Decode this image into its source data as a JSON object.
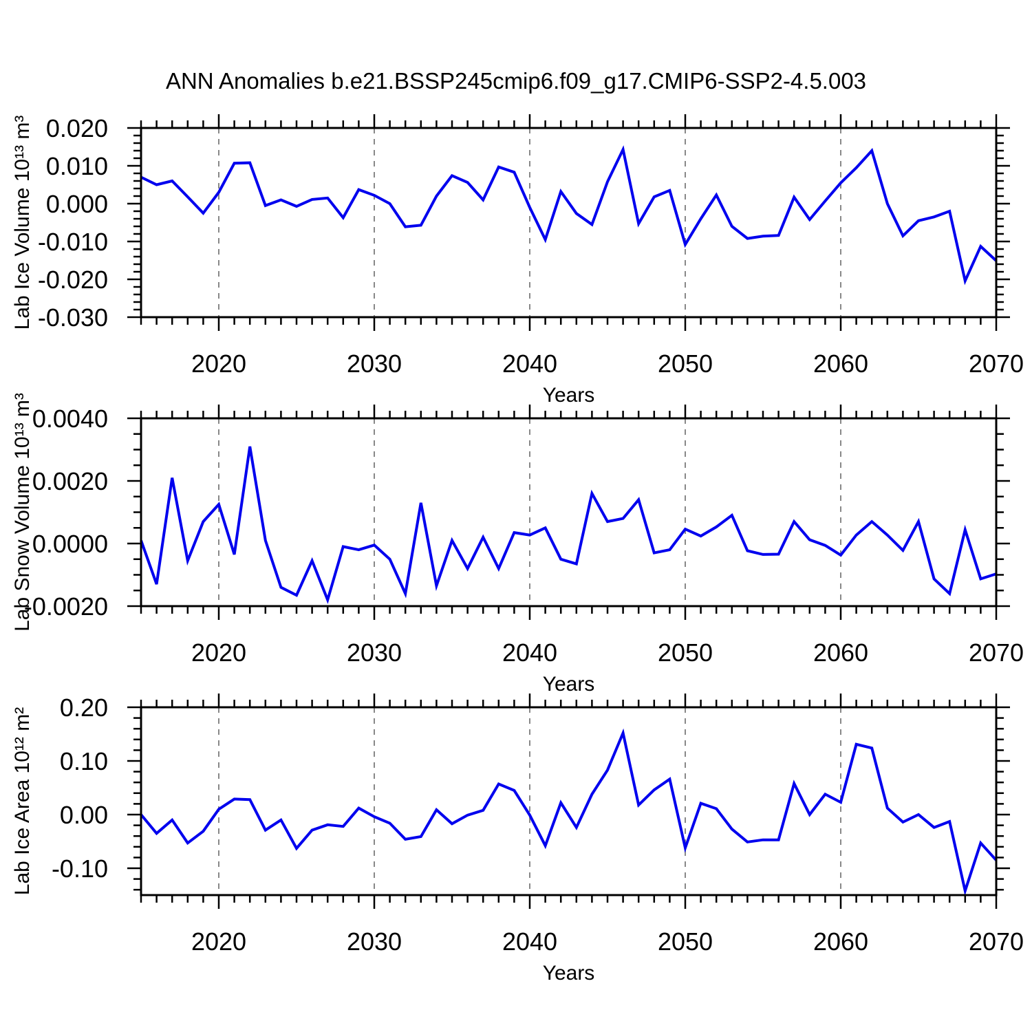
{
  "title": "ANN Anomalies b.e21.BSSP245cmip6.f09_g17.CMIP6-SSP2-4.5.003",
  "colors": {
    "series": "#0000EE",
    "grid": "#888888",
    "axis": "#000000",
    "background": "#FFFFFF"
  },
  "chart_data": [
    {
      "type": "line",
      "name": "lab-ice-volume",
      "ylabel": "Lab Ice Volume 10¹³ m³",
      "xlabel": "Years",
      "legend": "none",
      "grid": "vertical dashed gridlines at decade ticks",
      "xlim": [
        2015,
        2070
      ],
      "ylim": [
        -0.03,
        0.02
      ],
      "xticks": [
        2020,
        2030,
        2040,
        2050,
        2060,
        2070
      ],
      "yticks": [
        0.02,
        0.01,
        0.0,
        -0.01,
        -0.02,
        -0.03
      ],
      "ytick_labels": [
        "0.020",
        "0.010",
        "0.000",
        "-0.010",
        "-0.020",
        "-0.030"
      ],
      "y_minor_step": 0.002,
      "x_minor_step": 1,
      "x": [
        2015,
        2016,
        2017,
        2018,
        2019,
        2020,
        2021,
        2022,
        2023,
        2024,
        2025,
        2026,
        2027,
        2028,
        2029,
        2030,
        2031,
        2032,
        2033,
        2034,
        2035,
        2036,
        2037,
        2038,
        2039,
        2040,
        2041,
        2042,
        2043,
        2044,
        2045,
        2046,
        2047,
        2048,
        2049,
        2050,
        2051,
        2052,
        2053,
        2054,
        2055,
        2056,
        2057,
        2058,
        2059,
        2060,
        2061,
        2062,
        2063,
        2064,
        2065,
        2066,
        2067,
        2068,
        2069,
        2070
      ],
      "values": [
        0.007,
        0.005,
        0.006,
        0.0018,
        -0.0025,
        0.003,
        0.0107,
        0.0108,
        -0.0005,
        0.001,
        -0.0007,
        0.0011,
        0.0015,
        -0.0037,
        0.0037,
        0.0022,
        0.0,
        -0.0061,
        -0.0057,
        0.002,
        0.0074,
        0.0056,
        0.001,
        0.0097,
        0.0083,
        -0.001,
        -0.0095,
        0.0032,
        -0.0026,
        -0.0055,
        0.0058,
        0.0143,
        -0.0053,
        0.0018,
        0.0035,
        -0.0108,
        -0.004,
        0.0023,
        -0.006,
        -0.0092,
        -0.0086,
        -0.0084,
        0.0017,
        -0.0042,
        0.0007,
        0.0055,
        0.0095,
        0.014,
        0.0,
        -0.0085,
        -0.0045,
        -0.0035,
        -0.002,
        -0.0204,
        -0.0113,
        -0.0151
      ]
    },
    {
      "type": "line",
      "name": "lab-snow-volume",
      "ylabel": "Lab Snow Volume 10¹³ m³",
      "xlabel": "Years",
      "legend": "none",
      "grid": "vertical dashed gridlines at decade ticks",
      "xlim": [
        2015,
        2070
      ],
      "ylim": [
        -0.002,
        0.004
      ],
      "xticks": [
        2020,
        2030,
        2040,
        2050,
        2060,
        2070
      ],
      "yticks": [
        0.004,
        0.002,
        0.0,
        -0.002
      ],
      "ytick_labels": [
        "0.0040",
        "0.0020",
        "0.0000",
        "-0.0020"
      ],
      "y_minor_step": 0.0005,
      "x_minor_step": 1,
      "x": [
        2015,
        2016,
        2017,
        2018,
        2019,
        2020,
        2021,
        2022,
        2023,
        2024,
        2025,
        2026,
        2027,
        2028,
        2029,
        2030,
        2031,
        2032,
        2033,
        2034,
        2035,
        2036,
        2037,
        2038,
        2039,
        2040,
        2041,
        2042,
        2043,
        2044,
        2045,
        2046,
        2047,
        2048,
        2049,
        2050,
        2051,
        2052,
        2053,
        2054,
        2055,
        2056,
        2057,
        2058,
        2059,
        2060,
        2061,
        2062,
        2063,
        2064,
        2065,
        2066,
        2067,
        2068,
        2069,
        2070
      ],
      "values": [
        0.0001,
        -0.0013,
        0.0021,
        -0.00055,
        0.0007,
        0.00125,
        -0.00035,
        0.0031,
        0.0001,
        -0.0014,
        -0.00165,
        -0.00055,
        -0.0018,
        -0.0001,
        -0.0002,
        -5e-05,
        -0.0005,
        -0.0016,
        0.0013,
        -0.00135,
        0.0001,
        -0.0008,
        0.0002,
        -0.0008,
        0.00035,
        0.00027,
        0.0005,
        -0.0005,
        -0.00065,
        0.0016,
        0.0007,
        0.0008,
        0.0014,
        -0.0003,
        -0.0002,
        0.00046,
        0.00024,
        0.00053,
        0.0009,
        -0.00023,
        -0.00035,
        -0.00034,
        0.0007,
        0.00012,
        -6e-05,
        -0.00037,
        0.00027,
        0.0007,
        0.00027,
        -0.00022,
        0.0007,
        -0.00113,
        -0.0016,
        0.00044,
        -0.00113,
        -0.00097
      ]
    },
    {
      "type": "line",
      "name": "lab-ice-area",
      "ylabel": "Lab Ice Area 10¹² m²",
      "xlabel": "Years",
      "legend": "none",
      "grid": "vertical dashed gridlines at decade ticks",
      "xlim": [
        2015,
        2070
      ],
      "ylim": [
        -0.15,
        0.2
      ],
      "xticks": [
        2020,
        2030,
        2040,
        2050,
        2060,
        2070
      ],
      "yticks": [
        0.2,
        0.1,
        0.0,
        -0.1
      ],
      "ytick_labels": [
        "0.20",
        "0.10",
        "0.00",
        "-0.10"
      ],
      "y_minor_step": 0.02,
      "x_minor_step": 1,
      "x": [
        2015,
        2016,
        2017,
        2018,
        2019,
        2020,
        2021,
        2022,
        2023,
        2024,
        2025,
        2026,
        2027,
        2028,
        2029,
        2030,
        2031,
        2032,
        2033,
        2034,
        2035,
        2036,
        2037,
        2038,
        2039,
        2040,
        2041,
        2042,
        2043,
        2044,
        2045,
        2046,
        2047,
        2048,
        2049,
        2050,
        2051,
        2052,
        2053,
        2054,
        2055,
        2056,
        2057,
        2058,
        2059,
        2060,
        2061,
        2062,
        2063,
        2064,
        2065,
        2066,
        2067,
        2068,
        2069,
        2070
      ],
      "values": [
        0.0,
        -0.035,
        -0.01,
        -0.053,
        -0.031,
        0.01,
        0.029,
        0.028,
        -0.029,
        -0.01,
        -0.063,
        -0.029,
        -0.019,
        -0.022,
        0.012,
        -0.004,
        -0.016,
        -0.046,
        -0.041,
        0.009,
        -0.017,
        -0.001,
        0.008,
        0.057,
        0.045,
        -0.001,
        -0.058,
        0.022,
        -0.024,
        0.038,
        0.083,
        0.152,
        0.018,
        0.046,
        0.066,
        -0.062,
        0.021,
        0.011,
        -0.027,
        -0.051,
        -0.047,
        -0.047,
        0.058,
        0.0,
        0.038,
        0.023,
        0.131,
        0.124,
        0.012,
        -0.014,
        0.0,
        -0.024,
        -0.013,
        -0.142,
        -0.053,
        -0.085
      ]
    }
  ]
}
